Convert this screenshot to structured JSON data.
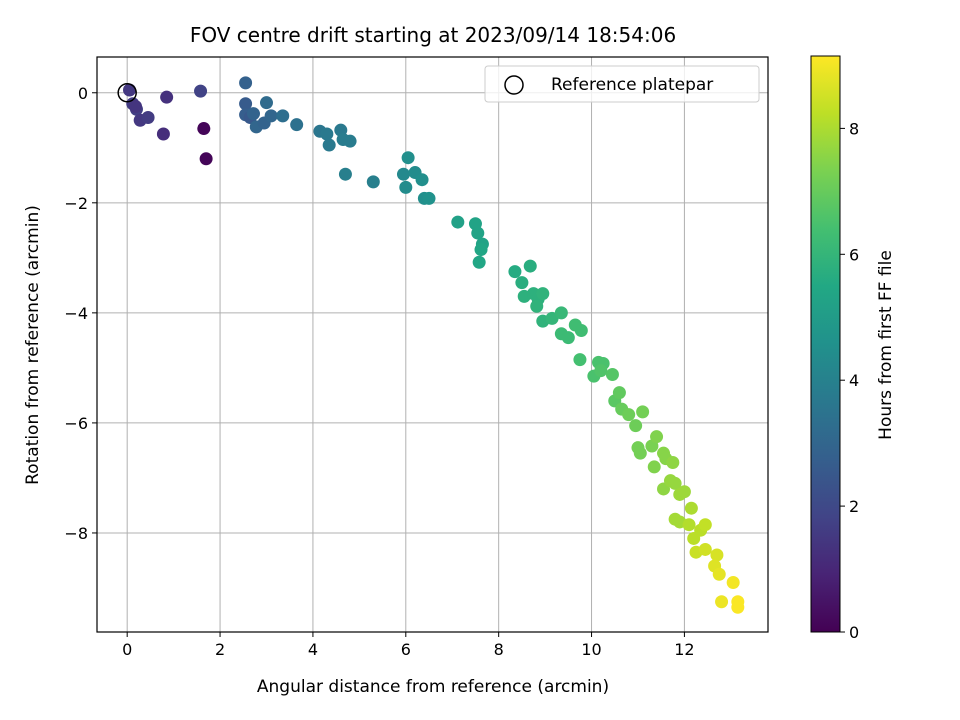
{
  "chart_data": {
    "type": "scatter",
    "title": "FOV centre drift starting at 2023/09/14 18:54:06",
    "xlabel": "Angular distance from reference (arcmin)",
    "ylabel": "Rotation from reference (arcmin)",
    "xlim": [
      -0.65,
      13.8
    ],
    "ylim": [
      -9.8,
      0.65
    ],
    "xticks": [
      0,
      2,
      4,
      6,
      8,
      10,
      12
    ],
    "yticks": [
      0,
      -2,
      -4,
      -6,
      -8
    ],
    "grid": true,
    "colormap": "viridis",
    "colorbar": {
      "label": "Hours from first FF file",
      "range": [
        0,
        9.15
      ],
      "ticks": [
        0,
        2,
        4,
        6,
        8
      ]
    },
    "legend": {
      "position": "top-right",
      "entries": [
        "Reference platepar"
      ]
    },
    "reference_point": {
      "x": 0,
      "y": 0
    },
    "points": [
      [
        0.05,
        0.05,
        1.5
      ],
      [
        0.12,
        -0.2,
        1.6
      ],
      [
        0.2,
        -0.3,
        1.7
      ],
      [
        0.18,
        -0.25,
        1.4
      ],
      [
        0.28,
        -0.5,
        1.5
      ],
      [
        0.45,
        -0.45,
        1.6
      ],
      [
        0.85,
        -0.08,
        1.3
      ],
      [
        0.78,
        -0.75,
        1.2
      ],
      [
        1.58,
        0.03,
        1.8
      ],
      [
        1.65,
        -0.65,
        0.1
      ],
      [
        1.7,
        -1.2,
        0.1
      ],
      [
        2.55,
        0.18,
        2.8
      ],
      [
        2.55,
        -0.2,
        2.6
      ],
      [
        2.55,
        -0.4,
        2.7
      ],
      [
        2.65,
        -0.45,
        2.5
      ],
      [
        2.72,
        -0.38,
        2.9
      ],
      [
        2.78,
        -0.62,
        3.0
      ],
      [
        2.95,
        -0.55,
        2.9
      ],
      [
        3.0,
        -0.18,
        3.2
      ],
      [
        3.1,
        -0.42,
        3.0
      ],
      [
        3.35,
        -0.42,
        3.3
      ],
      [
        3.65,
        -0.58,
        3.4
      ],
      [
        4.15,
        -0.7,
        3.6
      ],
      [
        4.3,
        -0.75,
        3.7
      ],
      [
        4.35,
        -0.95,
        3.7
      ],
      [
        4.6,
        -0.68,
        3.7
      ],
      [
        4.65,
        -0.85,
        3.8
      ],
      [
        4.8,
        -0.88,
        3.8
      ],
      [
        4.7,
        -1.48,
        3.9
      ],
      [
        5.3,
        -1.62,
        3.9
      ],
      [
        5.95,
        -1.48,
        4.3
      ],
      [
        6.0,
        -1.72,
        4.4
      ],
      [
        6.05,
        -1.18,
        4.5
      ],
      [
        6.2,
        -1.45,
        4.4
      ],
      [
        6.35,
        -1.58,
        4.5
      ],
      [
        6.4,
        -1.92,
        4.5
      ],
      [
        6.5,
        -1.92,
        4.6
      ],
      [
        7.12,
        -2.35,
        5.2
      ],
      [
        7.5,
        -2.38,
        5.3
      ],
      [
        7.55,
        -2.55,
        5.3
      ],
      [
        7.65,
        -2.75,
        5.3
      ],
      [
        7.62,
        -2.85,
        5.4
      ],
      [
        7.58,
        -3.08,
        5.4
      ],
      [
        8.35,
        -3.25,
        5.6
      ],
      [
        8.68,
        -3.15,
        5.7
      ],
      [
        8.5,
        -3.45,
        5.7
      ],
      [
        8.55,
        -3.7,
        5.8
      ],
      [
        8.75,
        -3.65,
        5.8
      ],
      [
        8.85,
        -3.75,
        5.8
      ],
      [
        8.95,
        -3.65,
        5.9
      ],
      [
        8.82,
        -3.88,
        5.9
      ],
      [
        8.95,
        -4.15,
        5.9
      ],
      [
        9.15,
        -4.1,
        6.0
      ],
      [
        9.35,
        -4.0,
        6.1
      ],
      [
        9.35,
        -4.38,
        6.2
      ],
      [
        9.5,
        -4.45,
        6.2
      ],
      [
        9.65,
        -4.22,
        6.3
      ],
      [
        9.78,
        -4.32,
        6.3
      ],
      [
        9.75,
        -4.85,
        6.4
      ],
      [
        10.05,
        -5.15,
        6.5
      ],
      [
        10.15,
        -4.9,
        6.5
      ],
      [
        10.25,
        -4.92,
        6.5
      ],
      [
        10.2,
        -5.05,
        6.6
      ],
      [
        10.45,
        -5.12,
        6.7
      ],
      [
        10.5,
        -5.6,
        6.8
      ],
      [
        10.6,
        -5.45,
        6.9
      ],
      [
        10.65,
        -5.75,
        7.0
      ],
      [
        10.8,
        -5.85,
        7.1
      ],
      [
        10.95,
        -6.05,
        7.1
      ],
      [
        11.1,
        -5.8,
        7.2
      ],
      [
        11.0,
        -6.45,
        7.2
      ],
      [
        11.05,
        -6.55,
        7.2
      ],
      [
        11.3,
        -6.42,
        7.3
      ],
      [
        11.4,
        -6.25,
        7.4
      ],
      [
        11.35,
        -6.8,
        7.4
      ],
      [
        11.55,
        -6.55,
        7.5
      ],
      [
        11.6,
        -6.65,
        7.5
      ],
      [
        11.75,
        -6.72,
        7.6
      ],
      [
        11.55,
        -7.2,
        7.6
      ],
      [
        11.7,
        -7.05,
        7.7
      ],
      [
        11.8,
        -7.1,
        7.7
      ],
      [
        11.9,
        -7.3,
        7.8
      ],
      [
        12.0,
        -7.25,
        7.8
      ],
      [
        11.8,
        -7.75,
        7.9
      ],
      [
        11.9,
        -7.8,
        7.9
      ],
      [
        12.15,
        -7.55,
        8.0
      ],
      [
        12.1,
        -7.85,
        8.1
      ],
      [
        12.2,
        -8.1,
        8.2
      ],
      [
        12.35,
        -7.95,
        8.2
      ],
      [
        12.45,
        -7.85,
        8.3
      ],
      [
        12.25,
        -8.35,
        8.4
      ],
      [
        12.45,
        -8.3,
        8.5
      ],
      [
        12.7,
        -8.4,
        8.6
      ],
      [
        12.65,
        -8.6,
        8.7
      ],
      [
        12.75,
        -8.75,
        8.8
      ],
      [
        12.8,
        -9.25,
        8.9
      ],
      [
        13.05,
        -8.9,
        9.0
      ],
      [
        13.15,
        -9.25,
        9.1
      ],
      [
        13.15,
        -9.35,
        9.1
      ]
    ]
  }
}
